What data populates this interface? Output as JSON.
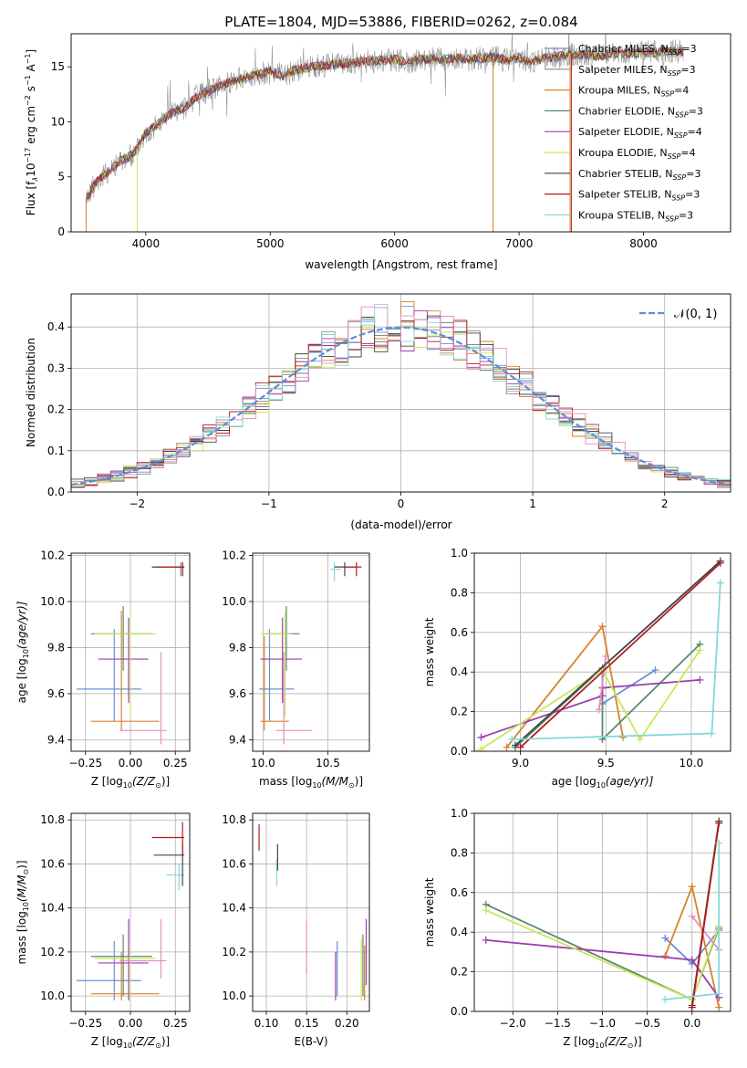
{
  "figure_title": "PLATE=1804, MJD=53886, FIBERID=0262, z=0.084",
  "legend_entries": [
    {
      "name": "Chabrier MILES",
      "nssp": "3",
      "color": "#6b8fd6"
    },
    {
      "name": "Salpeter MILES",
      "nssp": "3",
      "color": "#8a8a8a"
    },
    {
      "name": "Kroupa MILES",
      "nssp": "4",
      "color": "#d9822b"
    },
    {
      "name": "Chabrier ELODIE",
      "nssp": "3",
      "color": "#5a8a6a"
    },
    {
      "name": "Salpeter ELODIE",
      "nssp": "4",
      "color": "#9b3fb0"
    },
    {
      "name": "Kroupa ELODIE",
      "nssp": "4",
      "color": "#c8e85a"
    },
    {
      "name": "Chabrier STELIB",
      "nssp": "3",
      "color": "#444444"
    },
    {
      "name": "Salpeter STELIB",
      "nssp": "3",
      "color": "#b01c1c"
    },
    {
      "name": "Kroupa STELIB",
      "nssp": "3",
      "color": "#85d8d8"
    }
  ],
  "extra_colors": {
    "pink": "#e88cc0"
  },
  "chart_data": [
    {
      "id": "spectrum",
      "type": "line",
      "xlabel": "wavelength [Angstrom, rest frame]",
      "ylabel_main": "Flux [f",
      "ylabel_lambda": "λ",
      "ylabel_mid": "10",
      "ylabel_exp1": "−17",
      "ylabel_mid2": " erg cm",
      "ylabel_exp2": "−2",
      "ylabel_mid3": " s",
      "ylabel_exp3": "−1",
      "ylabel_mid4": " A",
      "ylabel_exp4": "−1",
      "ylabel_end": "]",
      "xlim": [
        3400,
        8700
      ],
      "ylim": [
        0,
        18
      ],
      "xticks": [
        4000,
        5000,
        6000,
        7000,
        8000
      ],
      "yticks": [
        0,
        5,
        10,
        15
      ],
      "continuum": [
        [
          3520,
          3
        ],
        [
          3600,
          4.5
        ],
        [
          3700,
          5.5
        ],
        [
          3800,
          6.5
        ],
        [
          3900,
          7
        ],
        [
          4000,
          9
        ],
        [
          4100,
          9.8
        ],
        [
          4200,
          10.8
        ],
        [
          4300,
          11.2
        ],
        [
          4400,
          12.2
        ],
        [
          4500,
          12.8
        ],
        [
          4600,
          13.3
        ],
        [
          4700,
          13.7
        ],
        [
          4800,
          14.0
        ],
        [
          4900,
          14.3
        ],
        [
          5000,
          14.6
        ],
        [
          5100,
          14.2
        ],
        [
          5200,
          14.7
        ],
        [
          5300,
          14.9
        ],
        [
          5400,
          15.1
        ],
        [
          5500,
          15.2
        ],
        [
          5600,
          15.3
        ],
        [
          5700,
          15.4
        ],
        [
          5800,
          15.5
        ],
        [
          5900,
          15.6
        ],
        [
          6000,
          15.7
        ],
        [
          6100,
          15.4
        ],
        [
          6200,
          15.6
        ],
        [
          6300,
          15.7
        ],
        [
          6400,
          15.7
        ],
        [
          6500,
          15.8
        ],
        [
          6600,
          15.7
        ],
        [
          6700,
          15.8
        ],
        [
          6800,
          15.9
        ],
        [
          6900,
          15.6
        ],
        [
          7000,
          15.8
        ],
        [
          7100,
          15.4
        ],
        [
          7200,
          15.8
        ],
        [
          7300,
          15.9
        ],
        [
          7400,
          16.1
        ],
        [
          7500,
          16.1
        ],
        [
          7600,
          16.0
        ],
        [
          7700,
          16.1
        ],
        [
          7800,
          16.2
        ],
        [
          7900,
          16.2
        ],
        [
          8000,
          16.3
        ],
        [
          8100,
          16.3
        ],
        [
          8200,
          16.4
        ],
        [
          8300,
          16.4
        ]
      ]
    },
    {
      "id": "residuals",
      "type": "histogram",
      "xlabel": "(data-model)/error",
      "ylabel": "Normed distribution",
      "legend": "𝒩(0, 1)",
      "xlim": [
        -2.5,
        2.5
      ],
      "ylim": [
        0,
        0.48
      ],
      "xticks": [
        -2,
        -1,
        0,
        1,
        2
      ],
      "xtick_labels": [
        "−2",
        "−1",
        "0",
        "1",
        "2"
      ],
      "yticks": [
        0,
        0.1,
        0.2,
        0.3,
        0.4
      ],
      "ytick_labels": [
        "0.0",
        "0.1",
        "0.2",
        "0.3",
        "0.4"
      ],
      "bin_width": 0.1,
      "normal_curve": {
        "mu": 0,
        "sigma": 1
      }
    },
    {
      "id": "age_vs_Z",
      "type": "errorbar",
      "xlabel": "Z [log",
      "xlabel_sub": "10",
      "xlabel_tail": "(Z/Z",
      "xlabel_end": ")]",
      "ylabel": "age  [log",
      "ylabel_sub": "10",
      "ylabel_tail": "(age/yr)]",
      "xlim": [
        -0.33,
        0.33
      ],
      "ylim": [
        9.35,
        10.21
      ],
      "xticks": [
        -0.25,
        0,
        0.25
      ],
      "xtick_labels": [
        "−0.25",
        "0.00",
        "0.25"
      ],
      "yticks": [
        9.4,
        9.6,
        9.8,
        10.0,
        10.2
      ],
      "ytick_labels": [
        "9.4",
        "9.6",
        "9.8",
        "10.0",
        "10.2"
      ],
      "points": [
        {
          "c": 0,
          "x": -0.09,
          "y": 9.62,
          "xl": -0.3,
          "xh": 0.06,
          "yl": 9.48,
          "yh": 9.88
        },
        {
          "c": 2,
          "x": -0.05,
          "y": 9.48,
          "xl": -0.22,
          "xh": 0.16,
          "yl": 9.44,
          "yh": 9.96
        },
        {
          "c": 3,
          "x": -0.04,
          "y": 9.86,
          "xl": -0.22,
          "xh": 0.12,
          "yl": 9.7,
          "yh": 9.98
        },
        {
          "c": 4,
          "x": -0.01,
          "y": 9.75,
          "xl": -0.18,
          "xh": 0.1,
          "yl": 9.56,
          "yh": 9.93
        },
        {
          "c": 5,
          "x": 0.0,
          "y": 9.86,
          "xl": -0.2,
          "xh": 0.14,
          "yl": 9.5,
          "yh": 9.96
        },
        {
          "c": 9,
          "x": 0.17,
          "y": 9.44,
          "xl": -0.06,
          "xh": 0.2,
          "yl": 9.38,
          "yh": 9.78
        },
        {
          "c": 1,
          "x": 0.28,
          "y": 10.15,
          "xl": 0.12,
          "xh": 0.3,
          "yl": 10.11,
          "yh": 10.17
        },
        {
          "c": 6,
          "x": 0.29,
          "y": 10.15,
          "xl": 0.12,
          "xh": 0.3,
          "yl": 10.11,
          "yh": 10.17
        },
        {
          "c": 7,
          "x": 0.29,
          "y": 10.15,
          "xl": 0.15,
          "xh": 0.3,
          "yl": 10.12,
          "yh": 10.17
        }
      ]
    },
    {
      "id": "age_vs_mass",
      "type": "errorbar",
      "xlabel": "mass [log",
      "xlabel_sub": "10",
      "xlabel_tail": "(M/M",
      "xlabel_end": ")]",
      "xlim": [
        9.92,
        10.82
      ],
      "ylim": [
        9.35,
        10.21
      ],
      "xticks": [
        10.0,
        10.5
      ],
      "xtick_labels": [
        "10.0",
        "10.5"
      ],
      "yticks": [
        9.4,
        9.6,
        9.8,
        10.0,
        10.2
      ],
      "ytick_labels": [
        "9.4",
        "9.6",
        "9.8",
        "10.0",
        "10.2"
      ],
      "points": [
        {
          "c": 0,
          "x": 10.05,
          "y": 9.62,
          "xl": 9.97,
          "xh": 10.24,
          "yl": 9.48,
          "yh": 9.88
        },
        {
          "c": 2,
          "x": 10.01,
          "y": 9.48,
          "xl": 9.98,
          "xh": 10.2,
          "yl": 9.44,
          "yh": 9.85
        },
        {
          "c": 3,
          "x": 10.18,
          "y": 9.86,
          "xl": 10.0,
          "xh": 10.28,
          "yl": 9.7,
          "yh": 9.98
        },
        {
          "c": 4,
          "x": 10.15,
          "y": 9.75,
          "xl": 9.98,
          "xh": 10.3,
          "yl": 9.56,
          "yh": 9.93
        },
        {
          "c": 5,
          "x": 10.17,
          "y": 9.86,
          "xl": 9.98,
          "xh": 10.22,
          "yl": 9.5,
          "yh": 9.96
        },
        {
          "c": 9,
          "x": 10.16,
          "y": 9.44,
          "xl": 10.1,
          "xh": 10.38,
          "yl": 9.38,
          "yh": 9.78
        },
        {
          "c": 8,
          "x": 10.55,
          "y": 10.14,
          "xl": 10.52,
          "xh": 10.6,
          "yl": 10.09,
          "yh": 10.17
        },
        {
          "c": 6,
          "x": 10.63,
          "y": 10.15,
          "xl": 10.55,
          "xh": 10.72,
          "yl": 10.11,
          "yh": 10.17
        },
        {
          "c": 7,
          "x": 10.72,
          "y": 10.15,
          "xl": 10.62,
          "xh": 10.76,
          "yl": 10.11,
          "yh": 10.17
        }
      ]
    },
    {
      "id": "mass_weight_vs_age",
      "type": "line",
      "xlabel": "age  [log",
      "xlabel_sub": "10",
      "xlabel_tail": "(age/yr)]",
      "ylabel": "mass weight",
      "xlim": [
        8.73,
        10.23
      ],
      "ylim": [
        0,
        1
      ],
      "xticks": [
        9.0,
        9.5,
        10.0
      ],
      "xtick_labels": [
        "9.0",
        "9.5",
        "10.0"
      ],
      "yticks": [
        0,
        0.2,
        0.4,
        0.6,
        0.8,
        1.0
      ],
      "ytick_labels": [
        "0.0",
        "0.2",
        "0.4",
        "0.6",
        "0.8",
        "1.0"
      ],
      "series": [
        {
          "c": 0,
          "x": [
            9.48,
            9.79
          ],
          "y": [
            0.24,
            0.41
          ]
        },
        {
          "c": 2,
          "x": [
            8.92,
            9.48,
            9.6
          ],
          "y": [
            0.02,
            0.63,
            0.07
          ]
        },
        {
          "c": 3,
          "x": [
            8.97,
            9.48,
            9.48,
            10.05
          ],
          "y": [
            0.02,
            0.42,
            0.06,
            0.54
          ]
        },
        {
          "c": 4,
          "x": [
            8.77,
            9.48,
            9.48,
            10.05
          ],
          "y": [
            0.07,
            0.28,
            0.32,
            0.36
          ]
        },
        {
          "c": 5,
          "x": [
            8.77,
            9.48,
            9.7,
            10.05
          ],
          "y": [
            0.01,
            0.41,
            0.06,
            0.51
          ]
        },
        {
          "c": 9,
          "x": [
            9.46,
            9.5
          ],
          "y": [
            0.21,
            0.48
          ]
        },
        {
          "c": 6,
          "x": [
            8.97,
            10.17
          ],
          "y": [
            0.03,
            0.96
          ]
        },
        {
          "c": 7,
          "x": [
            9.0,
            10.17
          ],
          "y": [
            0.02,
            0.95
          ]
        },
        {
          "c": 8,
          "x": [
            8.95,
            10.12,
            10.17
          ],
          "y": [
            0.06,
            0.09,
            0.85
          ]
        }
      ]
    },
    {
      "id": "mass_vs_Z",
      "type": "errorbar",
      "xlabel": "Z [log",
      "xlabel_sub": "10",
      "xlabel_tail": "(Z/Z",
      "xlabel_end": ")]",
      "ylabel": "mass [log",
      "ylabel_sub": "10",
      "ylabel_tail": "(M/M",
      "ylabel_end": ")]",
      "xlim": [
        -0.33,
        0.33
      ],
      "ylim": [
        9.93,
        10.83
      ],
      "xticks": [
        -0.25,
        0,
        0.25
      ],
      "xtick_labels": [
        "−0.25",
        "0.00",
        "0.25"
      ],
      "yticks": [
        10.0,
        10.2,
        10.4,
        10.6,
        10.8
      ],
      "ytick_labels": [
        "10.0",
        "10.2",
        "10.4",
        "10.6",
        "10.8"
      ],
      "points": [
        {
          "c": 0,
          "x": -0.09,
          "y": 10.07,
          "xl": -0.3,
          "xh": 0.06,
          "yl": 9.98,
          "yh": 10.25
        },
        {
          "c": 2,
          "x": -0.05,
          "y": 10.01,
          "xl": -0.22,
          "xh": 0.16,
          "yl": 9.98,
          "yh": 10.2
        },
        {
          "c": 3,
          "x": -0.04,
          "y": 10.18,
          "xl": -0.22,
          "xh": 0.12,
          "yl": 10.0,
          "yh": 10.28
        },
        {
          "c": 4,
          "x": -0.01,
          "y": 10.15,
          "xl": -0.18,
          "xh": 0.1,
          "yl": 9.98,
          "yh": 10.35
        },
        {
          "c": 5,
          "x": 0.0,
          "y": 10.17,
          "xl": -0.2,
          "xh": 0.14,
          "yl": 9.98,
          "yh": 10.22
        },
        {
          "c": 9,
          "x": 0.17,
          "y": 10.16,
          "xl": -0.06,
          "xh": 0.2,
          "yl": 10.08,
          "yh": 10.35
        },
        {
          "c": 8,
          "x": 0.27,
          "y": 10.55,
          "xl": 0.2,
          "xh": 0.3,
          "yl": 10.48,
          "yh": 10.6
        },
        {
          "c": 6,
          "x": 0.29,
          "y": 10.64,
          "xl": 0.13,
          "xh": 0.3,
          "yl": 10.5,
          "yh": 10.7
        },
        {
          "c": 7,
          "x": 0.29,
          "y": 10.72,
          "xl": 0.12,
          "xh": 0.3,
          "yl": 10.64,
          "yh": 10.79
        }
      ]
    },
    {
      "id": "mass_vs_ebv",
      "type": "errorbar",
      "xlabel": "E(B-V)",
      "xlim": [
        0.083,
        0.228
      ],
      "ylim": [
        9.93,
        10.83
      ],
      "xticks": [
        0.1,
        0.15,
        0.2
      ],
      "xtick_labels": [
        "0.10",
        "0.15",
        "0.20"
      ],
      "yticks": [
        10.0,
        10.2,
        10.4,
        10.6,
        10.8
      ],
      "ytick_labels": [
        "10.0",
        "10.2",
        "10.4",
        "10.6",
        "10.8"
      ],
      "points": [
        {
          "c": 7,
          "x": 0.091,
          "yl": 10.66,
          "yh": 10.78
        },
        {
          "c": 8,
          "x": 0.113,
          "yl": 10.5,
          "yh": 10.62
        },
        {
          "c": 6,
          "x": 0.114,
          "yl": 10.57,
          "yh": 10.69
        },
        {
          "c": 9,
          "x": 0.15,
          "yl": 10.1,
          "yh": 10.34
        },
        {
          "c": 4,
          "x": 0.186,
          "yl": 9.98,
          "yh": 10.2
        },
        {
          "c": 0,
          "x": 0.188,
          "yl": 10.0,
          "yh": 10.25
        },
        {
          "c": 5,
          "x": 0.218,
          "yl": 9.98,
          "yh": 10.26
        },
        {
          "c": 3,
          "x": 0.22,
          "yl": 10.0,
          "yh": 10.28
        },
        {
          "c": 2,
          "x": 0.222,
          "yl": 9.98,
          "yh": 10.23
        },
        {
          "c": 4,
          "x": 0.224,
          "yl": 10.05,
          "yh": 10.35
        }
      ]
    },
    {
      "id": "mass_weight_vs_Z",
      "type": "line",
      "xlabel": "Z [log",
      "xlabel_sub": "10",
      "xlabel_tail": "(Z/Z",
      "xlabel_end": ")]",
      "ylabel": "mass weight",
      "xlim": [
        -2.43,
        0.43
      ],
      "ylim": [
        0,
        1
      ],
      "xticks": [
        -2.0,
        -1.5,
        -1.0,
        -0.5,
        0.0
      ],
      "xtick_labels": [
        "−2.0",
        "−1.5",
        "−1.0",
        "−0.5",
        "0.0"
      ],
      "yticks": [
        0,
        0.2,
        0.4,
        0.6,
        0.8,
        1.0
      ],
      "ytick_labels": [
        "0.0",
        "0.2",
        "0.4",
        "0.6",
        "0.8",
        "1.0"
      ],
      "series": [
        {
          "c": 0,
          "x": [
            -0.3,
            0.0,
            0.3
          ],
          "y": [
            0.37,
            0.24,
            0.41
          ]
        },
        {
          "c": 2,
          "x": [
            -0.3,
            0.0,
            0.3
          ],
          "y": [
            0.28,
            0.63,
            0.02
          ]
        },
        {
          "c": 3,
          "x": [
            -2.3,
            0.0,
            0.3
          ],
          "y": [
            0.54,
            0.06,
            0.42
          ]
        },
        {
          "c": 4,
          "x": [
            -2.3,
            0.0,
            0.3
          ],
          "y": [
            0.36,
            0.26,
            0.07
          ]
        },
        {
          "c": 5,
          "x": [
            -2.3,
            0.0,
            0.3
          ],
          "y": [
            0.51,
            0.06,
            0.43
          ]
        },
        {
          "c": 9,
          "x": [
            0.0,
            0.3
          ],
          "y": [
            0.48,
            0.31
          ]
        },
        {
          "c": 6,
          "x": [
            0.0,
            0.3
          ],
          "y": [
            0.03,
            0.96
          ]
        },
        {
          "c": 7,
          "x": [
            0.0,
            0.3
          ],
          "y": [
            0.02,
            0.95
          ]
        },
        {
          "c": 8,
          "x": [
            -0.3,
            0.3,
            0.3
          ],
          "y": [
            0.06,
            0.09,
            0.85
          ]
        }
      ]
    }
  ]
}
